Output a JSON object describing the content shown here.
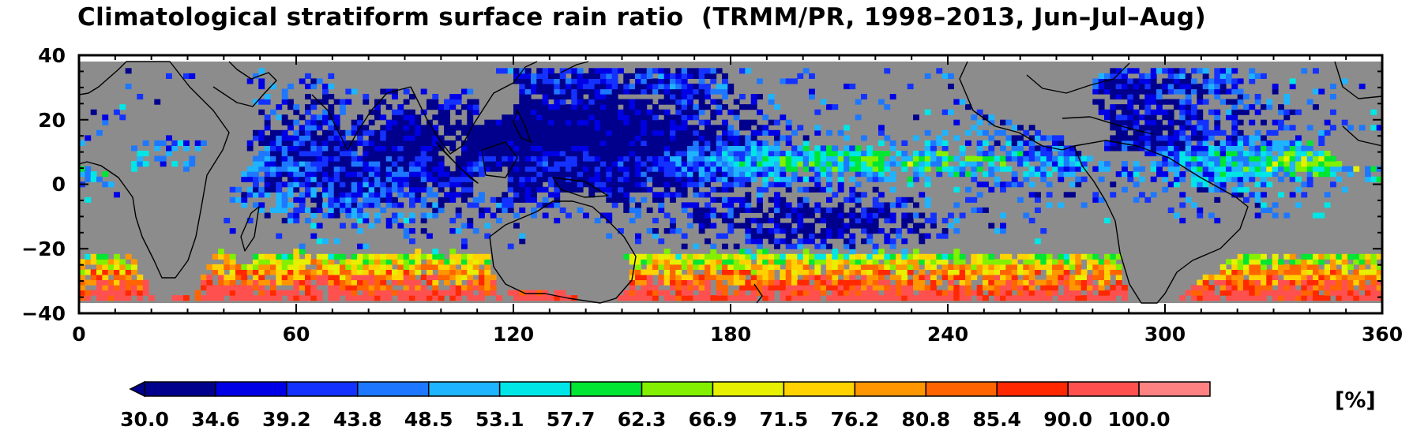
{
  "title": "Climatological stratiform surface rain ratio  (TRMM/PR, 1998–2013, Jun–Jul–Aug)",
  "map": {
    "projection": "equirectangular",
    "lon_range": [
      0,
      360
    ],
    "lat_range": [
      -40,
      40
    ],
    "data_lat_range": [
      -36,
      36
    ],
    "x_ticks": [
      "0",
      "60",
      "120",
      "180",
      "240",
      "300",
      "360"
    ],
    "y_ticks": [
      "40",
      "20",
      "0",
      "−20",
      "−40"
    ],
    "background_color": "#8c8c8c",
    "coastline_color": "#000000"
  },
  "colorbar": {
    "labels": [
      "30.0",
      "34.6",
      "39.2",
      "43.8",
      "48.5",
      "53.1",
      "57.7",
      "62.3",
      "66.9",
      "71.5",
      "76.2",
      "80.8",
      "85.4",
      "90.0",
      "100.0"
    ],
    "colors": [
      "#00008c",
      "#0000e6",
      "#1432ff",
      "#1e78ff",
      "#1eb4ff",
      "#00e6e6",
      "#00e632",
      "#82f000",
      "#e6f000",
      "#ffd200",
      "#ff9600",
      "#ff6400",
      "#ff2800",
      "#ff5050",
      "#ff8282"
    ],
    "extend": "min",
    "unit": "[%]"
  },
  "chart_data": {
    "type": "heatmap",
    "title": "Climatological stratiform surface rain ratio  (TRMM/PR, 1998–2013, Jun–Jul–Aug)",
    "x_range": [
      0,
      360
    ],
    "y_range": [
      -40,
      40
    ],
    "value_unit": "[%]",
    "value_range": [
      30,
      100
    ],
    "regimes": [
      {
        "lon": [
          40,
          180
        ],
        "lat": [
          -10,
          35
        ],
        "level": "low (30–50)"
      },
      {
        "lon": [
          180,
          230
        ],
        "lat": [
          -20,
          -5
        ],
        "level": "low (30–45)"
      },
      {
        "lon": [
          255,
          315
        ],
        "lat": [
          5,
          35
        ],
        "level": "low (30–50)"
      },
      {
        "lon": [
          150,
          330
        ],
        "lat": [
          -36,
          -22
        ],
        "level": "high (75–100)"
      },
      {
        "lon": [
          190,
          250
        ],
        "lat": [
          3,
          12
        ],
        "level": "mid (55–75)"
      }
    ]
  }
}
